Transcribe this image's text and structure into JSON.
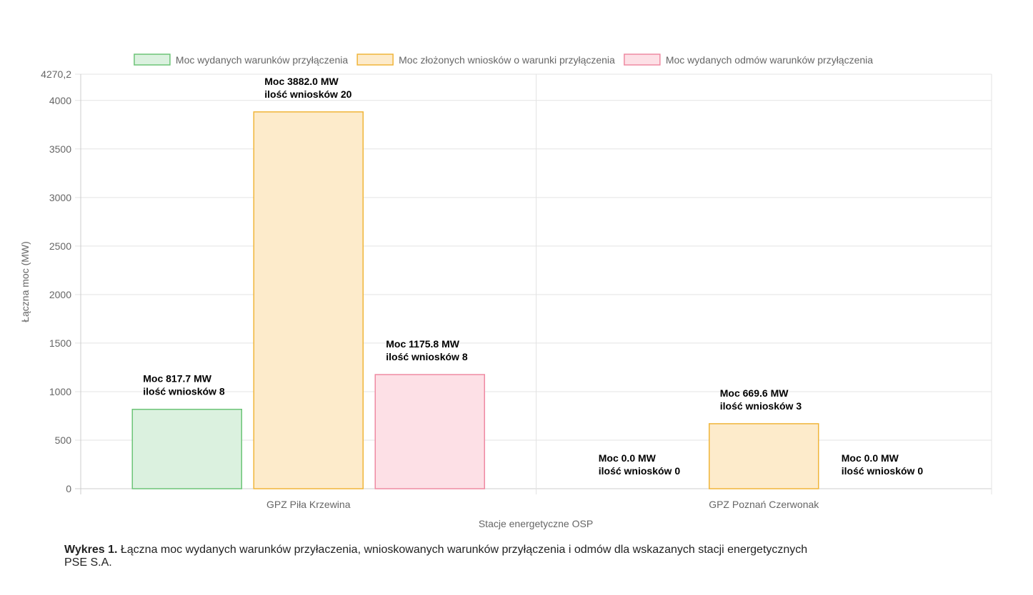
{
  "chart_data": {
    "type": "bar",
    "categories": [
      "GPZ Piła Krzewina",
      "GPZ Poznań Czerwonak"
    ],
    "series": [
      {
        "name": "Moc wydanych warunków przyłączenia",
        "values": [
          817.7,
          0.0
        ],
        "counts": [
          8,
          0
        ],
        "fill": "#dbf1df",
        "stroke": "#6cc477"
      },
      {
        "name": "Moc złożonych wniosków o warunki przyłączenia",
        "values": [
          3882.0,
          669.6
        ],
        "counts": [
          20,
          3
        ],
        "fill": "#fdebcb",
        "stroke": "#f0b53a"
      },
      {
        "name": "Moc wydanych odmów warunków przyłączenia",
        "values": [
          1175.8,
          0.0
        ],
        "counts": [
          8,
          0
        ],
        "fill": "#fde0e6",
        "stroke": "#ef8aa2"
      }
    ],
    "data_label_prefix": "Moc",
    "data_label_unit": "MW",
    "data_label_count_text": "ilość wniosków",
    "ylim": [
      0,
      4270.2
    ],
    "yticks": [
      "0",
      "500",
      "1000",
      "1500",
      "2000",
      "2500",
      "3000",
      "3500",
      "4000",
      "4270,2"
    ],
    "ytick_values": [
      0,
      500,
      1000,
      1500,
      2000,
      2500,
      3000,
      3500,
      4000,
      4270.2
    ],
    "xlabel": "Stacje energetyczne OSP",
    "ylabel": "Łączna moc (MW)",
    "grid": true,
    "legend_position": "top"
  },
  "caption": {
    "bold": "Wykres 1.",
    "text": " Łączna moc wydanych warunków przyłaczenia, wnioskowanych warunków przyłączenia i odmów dla wskazanych stacji energetycznych PSE S.A."
  }
}
